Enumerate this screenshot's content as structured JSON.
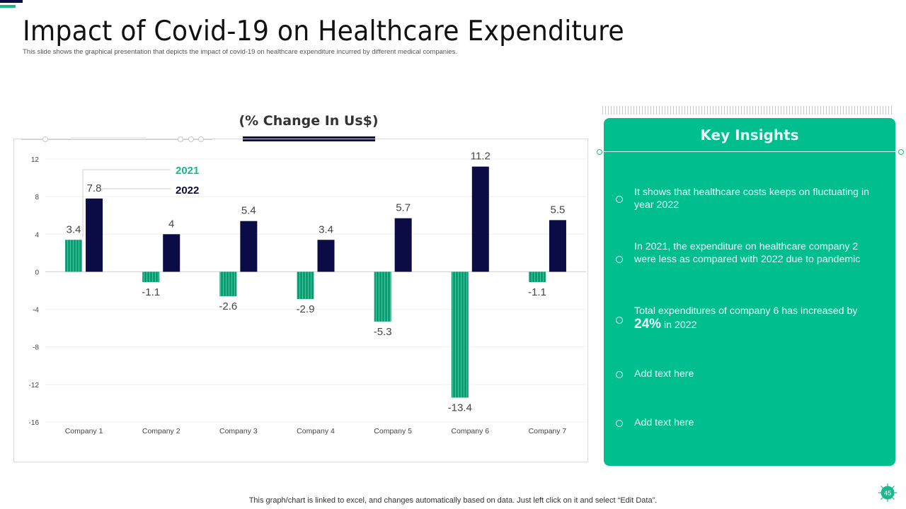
{
  "header": {
    "title": "Impact of Covid-19 on Healthcare Expenditure",
    "subtitle": "This slide shows the graphical presentation that depicts the impact of covid-19 on healthcare expenditure incurred by different medical companies."
  },
  "colors": {
    "navy": "#0b0b45",
    "green": "#0e9b72",
    "panel_green": "#00be8e",
    "accent_green": "#19b98c"
  },
  "chart_data": {
    "type": "bar",
    "title": "(% Change In Us$)",
    "xlabel": "",
    "ylabel": "",
    "categories": [
      "Company 1",
      "Company 2",
      "Company 3",
      "Company 4",
      "Company 5",
      "Company 6",
      "Company 7"
    ],
    "series": [
      {
        "name": "2021",
        "color": "#0e9b72",
        "values": [
          3.4,
          -1.1,
          -2.6,
          -2.9,
          -5.3,
          -13.4,
          -1.1
        ]
      },
      {
        "name": "2022",
        "color": "#0b0b45",
        "values": [
          7.8,
          4,
          5.4,
          3.4,
          5.7,
          11.2,
          5.5
        ]
      }
    ],
    "ylim": [
      -16,
      12
    ],
    "yticks": [
      12,
      8,
      4,
      0,
      -4,
      -8,
      -12,
      -16
    ],
    "grid": true,
    "legend": "top-left, callout"
  },
  "insights": {
    "title": "Key Insights",
    "items": [
      {
        "text": "It shows that healthcare costs keeps on fluctuating in year 2022"
      },
      {
        "text": "In 2021, the expenditure on healthcare company 2 were less as compared with 2022 due to pandemic"
      },
      {
        "pre": "Total expenditures of company 6 has increased by ",
        "highlight": "24%",
        "post": " in 2022"
      },
      {
        "text": "Add text here"
      },
      {
        "text": "Add text here"
      }
    ]
  },
  "footnote": "This graph/chart is linked to excel, and changes automatically based on data. Just left click on it and select “Edit Data”.",
  "page_number": "45"
}
